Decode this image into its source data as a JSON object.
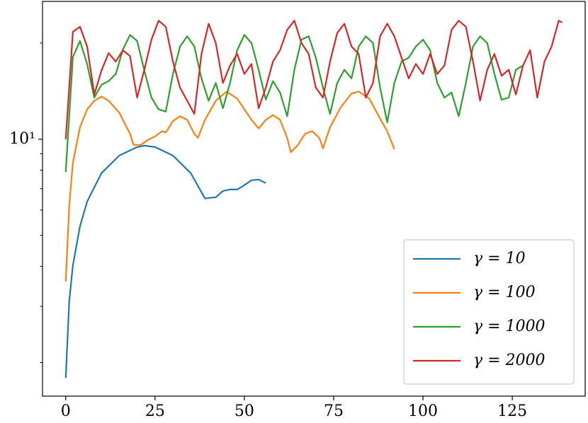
{
  "chart_data": {
    "type": "line",
    "log_y": true,
    "legend": "lower right",
    "xlim": [
      -6.5,
      145.4
    ],
    "ylim": [
      1.57,
      27
    ],
    "xticks": [
      0,
      25,
      50,
      75,
      100,
      125
    ],
    "yticks": [
      {
        "value": 10,
        "label": "10¹"
      }
    ],
    "yminor": [
      2,
      3,
      4,
      5,
      6,
      7,
      8,
      9,
      20
    ],
    "series": [
      {
        "name": "γ = 10",
        "color": "#1f77b4",
        "x": [
          0,
          1,
          2,
          4,
          6,
          10,
          15,
          20,
          22,
          25,
          30,
          35,
          39,
          40,
          42,
          44,
          46,
          48,
          50,
          52,
          54,
          56
        ],
        "values": [
          1.79,
          3.13,
          4.03,
          5.34,
          6.38,
          7.83,
          8.89,
          9.45,
          9.55,
          9.45,
          8.89,
          7.83,
          6.52,
          6.55,
          6.58,
          6.89,
          6.96,
          6.96,
          7.18,
          7.44,
          7.48,
          7.29
        ]
      },
      {
        "name": "γ = 100",
        "color": "#ff7f0e",
        "x": [
          0,
          1,
          2,
          4,
          6,
          8,
          10,
          12,
          15,
          18,
          19,
          21,
          23,
          25,
          27,
          28,
          30,
          32,
          34,
          36,
          37,
          39,
          42,
          45,
          48,
          52,
          54,
          56,
          58,
          60,
          62,
          63,
          65,
          67,
          69,
          71,
          72,
          74,
          77,
          80,
          82,
          85,
          88,
          90,
          92
        ],
        "values": [
          3.59,
          6.23,
          8.45,
          10.9,
          12.4,
          13.2,
          13.6,
          13.2,
          12.1,
          10.4,
          9.6,
          9.6,
          9.95,
          10.2,
          10.6,
          10.5,
          11.4,
          11.8,
          11.5,
          10.4,
          10.1,
          11.5,
          13.2,
          14.1,
          13.4,
          11.5,
          10.8,
          11.5,
          11.9,
          11.5,
          10.1,
          9.1,
          9.6,
          10.4,
          10.6,
          10.1,
          9.36,
          10.9,
          12.6,
          13.9,
          14.1,
          13.4,
          11.6,
          10.6,
          9.3
        ]
      },
      {
        "name": "γ = 1000",
        "color": "#2ca02c",
        "x": [
          0,
          2,
          4,
          6,
          8,
          10,
          12,
          14,
          16,
          18,
          20,
          22,
          24,
          26,
          28,
          30,
          32,
          34,
          36,
          38,
          40,
          42,
          44,
          46,
          48,
          50,
          52,
          54,
          56,
          58,
          60,
          62,
          64,
          66,
          68,
          70,
          72,
          74,
          76,
          78,
          80,
          82,
          84,
          86,
          88,
          90,
          92,
          94,
          96,
          98,
          100,
          102,
          104,
          106,
          108,
          110,
          112,
          114,
          116,
          118,
          120,
          122,
          124,
          126,
          128
        ],
        "values": [
          7.9,
          18.1,
          20.3,
          17.2,
          13.5,
          14.8,
          15.2,
          16,
          19.1,
          21.2,
          20.3,
          16.4,
          13.5,
          12.4,
          12.2,
          16,
          19.5,
          21,
          19.5,
          15.5,
          13.2,
          15,
          12.5,
          15,
          19,
          21.2,
          20,
          16.5,
          13.3,
          15.2,
          14,
          11.8,
          16.5,
          20.5,
          21,
          18,
          14.5,
          12,
          15,
          16.5,
          15.5,
          19.5,
          21,
          20,
          14.5,
          11.3,
          15,
          17.5,
          18,
          19.5,
          20.5,
          19,
          15,
          13.5,
          14,
          11.8,
          15,
          19.5,
          21,
          20,
          16,
          13.3,
          13.5,
          16.5,
          17
        ]
      },
      {
        "name": "γ = 2000",
        "color": "#d62728",
        "x": [
          0,
          2,
          4,
          6,
          8,
          10,
          12,
          14,
          16,
          18,
          20,
          22,
          24,
          26,
          28,
          30,
          32,
          34,
          36,
          38,
          40,
          42,
          44,
          46,
          48,
          50,
          52,
          54,
          56,
          58,
          60,
          62,
          64,
          66,
          68,
          70,
          72,
          74,
          76,
          78,
          80,
          82,
          84,
          86,
          88,
          90,
          92,
          94,
          96,
          98,
          100,
          102,
          104,
          106,
          108,
          110,
          112,
          114,
          116,
          118,
          120,
          122,
          124,
          126,
          128,
          130,
          132,
          134,
          136,
          138,
          139
        ],
        "values": [
          10,
          21.7,
          22.5,
          19.5,
          13.8,
          16.4,
          18.6,
          17.5,
          19,
          18.2,
          13.5,
          16.5,
          20.5,
          23.5,
          22.5,
          17.5,
          14.5,
          13.2,
          12,
          18.5,
          23,
          20,
          15,
          17,
          18.5,
          16,
          17.2,
          12.5,
          14.5,
          17.5,
          19,
          22,
          23.5,
          20,
          18.5,
          14.5,
          13.5,
          17.5,
          21.5,
          23,
          19.5,
          18.5,
          13.5,
          15,
          21,
          23,
          21,
          18,
          15.5,
          17.2,
          16,
          18.5,
          16,
          17,
          22,
          23.5,
          22.5,
          17.5,
          13.2,
          16.5,
          18.5,
          15.8,
          16.5,
          13.8,
          17,
          19,
          13.5,
          17.5,
          19.5,
          23.5,
          23.2
        ]
      }
    ]
  }
}
